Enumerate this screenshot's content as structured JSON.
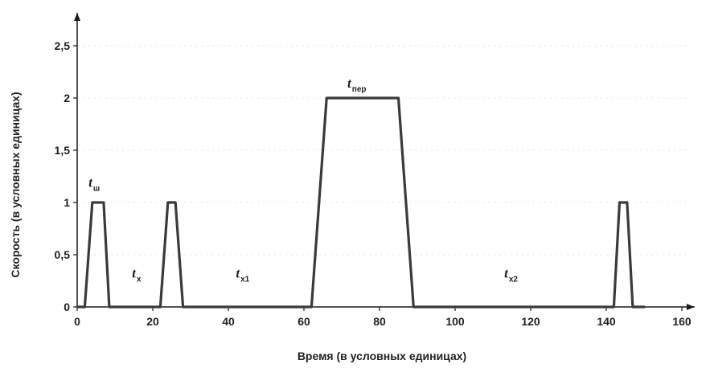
{
  "chart_data": {
    "type": "line",
    "xlabel": "Время (в условных единицах)",
    "ylabel": "Скорость (в условных единицах)",
    "xlim": [
      0,
      165
    ],
    "ylim": [
      0,
      2.5
    ],
    "x_ticks": [
      0,
      20,
      40,
      60,
      80,
      100,
      120,
      140,
      160
    ],
    "x_tick_labels": [
      "0",
      "20",
      "40",
      "60",
      "80",
      "100",
      "120",
      "140",
      "160"
    ],
    "y_ticks": [
      0,
      0.5,
      1,
      1.5,
      2,
      2.5
    ],
    "y_tick_labels": [
      "0",
      "0,5",
      "1",
      "1,5",
      "2",
      "2,5"
    ],
    "grid": false,
    "series": [
      {
        "x": [
          0,
          2,
          4,
          7,
          8.5,
          22,
          24,
          26,
          28,
          62,
          66,
          85,
          89,
          142,
          143.5,
          145.5,
          147,
          150
        ],
        "y": [
          0,
          0,
          1,
          1,
          0,
          0,
          1,
          1,
          0,
          0,
          2,
          2,
          0,
          0,
          1,
          1,
          0,
          0
        ]
      }
    ],
    "annotations": [
      {
        "text": "t",
        "sub": "ш",
        "x": 3,
        "y": 1.15
      },
      {
        "text": "t",
        "sub": "х",
        "x": 14.5,
        "y": 0.28
      },
      {
        "text": "t",
        "sub": "х1",
        "x": 42,
        "y": 0.28
      },
      {
        "text": "t",
        "sub": "пер",
        "x": 71.5,
        "y": 2.1
      },
      {
        "text": "t",
        "sub": "х2",
        "x": 113,
        "y": 0.28
      }
    ],
    "colors": {
      "line": "#3a3a3a",
      "axis": "#1a1a1a",
      "grid": "#d9d9d9"
    }
  }
}
